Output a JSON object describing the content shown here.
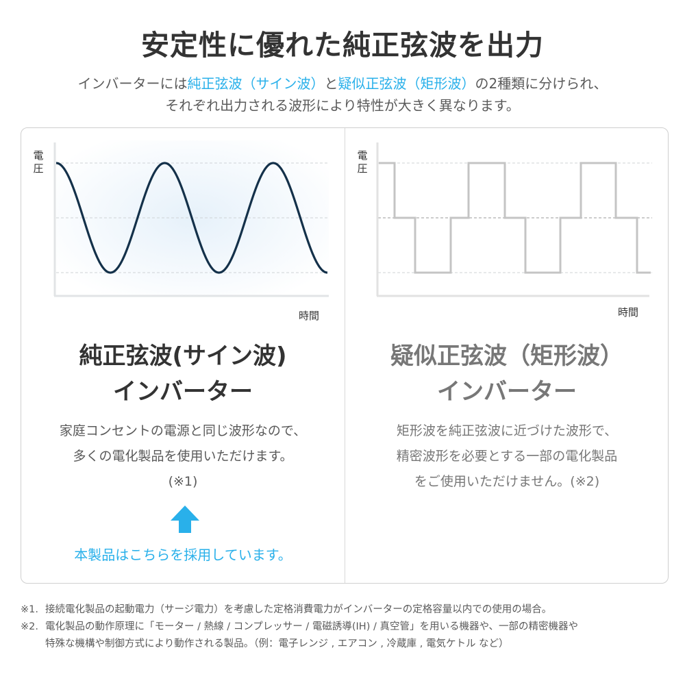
{
  "header": {
    "title": "安定性に優れた純正弦波を出力",
    "subtitle_line1": {
      "pre": "インバーターには",
      "hl1": "純正弦波（サイン波）",
      "mid": "と",
      "hl2": "疑似正弦波（矩形波）",
      "post": "の2種類に分けられ、"
    },
    "subtitle_line2": "それぞれ出力される波形により特性が大きく異なります。"
  },
  "colors": {
    "accent": "#29b0ea",
    "sine_line": "#14314a",
    "square_line": "#c4c4c4",
    "text": "#333333",
    "muted_heading": "#777777"
  },
  "left_panel": {
    "y_label": "電圧",
    "x_label": "時間",
    "waveform": {
      "type": "sine",
      "cycles": 2.5,
      "start": "peak"
    },
    "heading_line1": "純正弦波(サイン波)",
    "heading_line2": "インバーター",
    "body_line1": "家庭コンセントの電源と同じ波形なので、",
    "body_line2": "多くの電化製品を使用いただけます。",
    "body_line3": "(※1)",
    "arrow_icon": "arrow-up",
    "adopted_label": "本製品はこちらを採用しています。"
  },
  "right_panel": {
    "y_label": "電圧",
    "x_label": "時間",
    "waveform": {
      "type": "modified-square",
      "levels": [
        1,
        0,
        -1,
        0,
        1,
        0,
        -1,
        0,
        1,
        0,
        -1
      ]
    },
    "heading_line1": "疑似正弦波（矩形波）",
    "heading_line2": "インバーター",
    "body_line1": "矩形波を純正弦波に近づけた波形で、",
    "body_line2": "精密波形を必要とする一部の電化製品",
    "body_line3": "をご使用いただけません。(※2)"
  },
  "footnotes": [
    {
      "mark": "※1.",
      "lines": [
        "接続電化製品の起動電力（サージ電力）を考慮した定格消費電力がインバーターの定格容量以内での使用の場合。"
      ]
    },
    {
      "mark": "※2.",
      "lines": [
        "電化製品の動作原理に「モーター / 熱線 / コンプレッサー / 電磁誘導(IH) / 真空管」を用いる機器や、一部の精密機器や",
        "特殊な機構や制御方式により動作される製品。（例：電子レンジ , エアコン , 冷蔵庫 , 電気ケトル など）"
      ]
    }
  ]
}
